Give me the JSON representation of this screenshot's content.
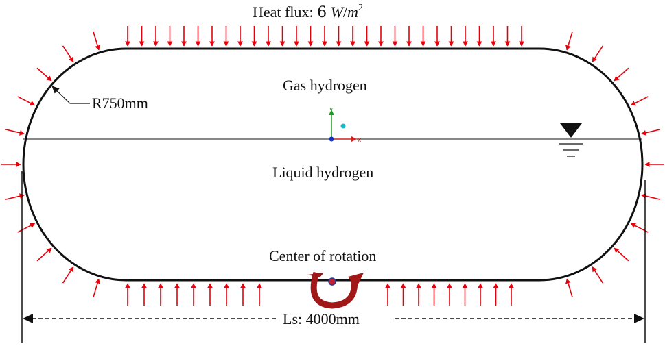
{
  "diagram": {
    "heat_flux": {
      "prefix": "Heat flux: ",
      "value": "6",
      "unit_W": "W",
      "unit_sep": "/",
      "unit_m": "m",
      "unit_exp": "2"
    },
    "gas_label": "Gas hydrogen",
    "liquid_label": "Liquid hydrogen",
    "radius_label": "R750mm",
    "rotation_label": "Center of rotation",
    "length_label": "Ls: 4000mm",
    "axis_y": "y",
    "axis_x": "x",
    "colors": {
      "arrow": "#e8000b",
      "outline": "#111111",
      "rotation": "#a01818",
      "axis_y": "#1a9a1a",
      "axis_x": "#d42020",
      "origin": "#1030c0",
      "dot": "#18b8c8"
    }
  }
}
